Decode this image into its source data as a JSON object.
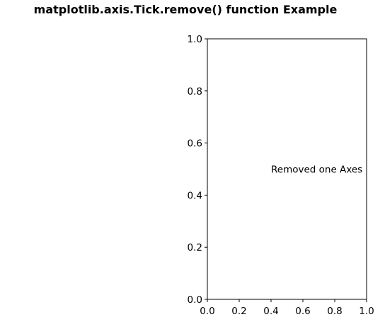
{
  "figure": {
    "title": "matplotlib.axis.Tick.remove() function Example"
  },
  "chart_data": {
    "type": "scatter",
    "title": "",
    "xlabel": "",
    "ylabel": "",
    "xlim": [
      0.0,
      1.0
    ],
    "ylim": [
      0.0,
      1.0
    ],
    "xticks": [
      0.0,
      0.2,
      0.4,
      0.6,
      0.8,
      1.0
    ],
    "xtick_labels": [
      "0.0",
      "0.2",
      "0.4",
      "0.6",
      "0.8",
      "1.0"
    ],
    "yticks": [
      0.0,
      0.2,
      0.4,
      0.6,
      0.8,
      1.0
    ],
    "ytick_labels": [
      "0.0",
      "0.2",
      "0.4",
      "0.6",
      "0.8",
      "1.0"
    ],
    "grid": false,
    "series": [],
    "annotations": [
      {
        "text": "Removed one Axes",
        "x": 0.4,
        "y": 0.5
      }
    ]
  }
}
